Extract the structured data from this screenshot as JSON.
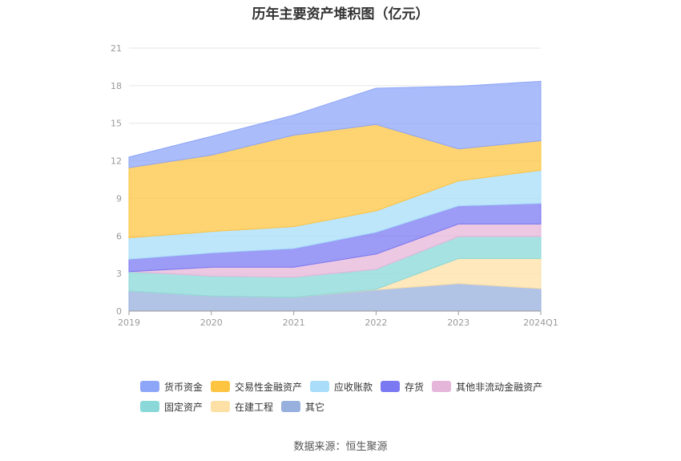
{
  "title": "历年主要资产堆积图（亿元）",
  "source": "数据来源：恒生聚源",
  "chart_data": {
    "type": "area",
    "stacked": true,
    "categories": [
      "2019",
      "2020",
      "2021",
      "2022",
      "2023",
      "2024Q1"
    ],
    "yticks": [
      "0",
      "3",
      "6",
      "9",
      "12",
      "15",
      "18",
      "21"
    ],
    "ylim": [
      0,
      21
    ],
    "grid": true,
    "legend_position": "bottom",
    "series": [
      {
        "name": "货币资金",
        "color": "#8ea6f8",
        "values": [
          0.85,
          1.5,
          1.6,
          2.9,
          5.0,
          4.75
        ]
      },
      {
        "name": "交易性金融资产",
        "color": "#fdc441",
        "values": [
          5.6,
          6.1,
          7.3,
          6.9,
          2.55,
          2.35
        ]
      },
      {
        "name": "应收账款",
        "color": "#a8def9",
        "values": [
          1.7,
          1.7,
          1.75,
          1.7,
          2.0,
          2.65
        ]
      },
      {
        "name": "存货",
        "color": "#7b79f2",
        "values": [
          1.0,
          1.15,
          1.5,
          1.75,
          1.45,
          1.65
        ]
      },
      {
        "name": "其他非流动金融资产",
        "color": "#e5b5da",
        "values": [
          0.0,
          0.7,
          0.8,
          1.2,
          1.0,
          1.0
        ]
      },
      {
        "name": "固定资产",
        "color": "#8ad8d8",
        "values": [
          1.55,
          1.6,
          1.6,
          1.6,
          1.75,
          1.75
        ]
      },
      {
        "name": "在建工程",
        "color": "#fde0a6",
        "values": [
          0.0,
          0.0,
          0.0,
          0.05,
          2.0,
          2.4
        ]
      },
      {
        "name": "其它",
        "color": "#98b0dd",
        "values": [
          1.6,
          1.2,
          1.1,
          1.7,
          2.2,
          1.8
        ]
      }
    ]
  }
}
